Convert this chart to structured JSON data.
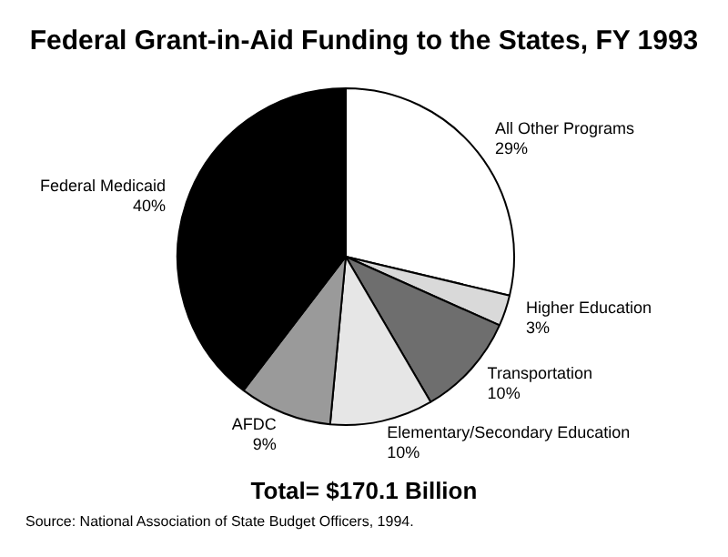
{
  "chart_data": {
    "type": "pie",
    "title": "Federal Grant-in-Aid Funding to the States, FY 1993",
    "categories": [
      "All Other Programs",
      "Higher Education",
      "Transportation",
      "Elementary/Secondary Education",
      "AFDC",
      "Federal Medicaid"
    ],
    "values": [
      29,
      3,
      10,
      10,
      9,
      40
    ],
    "colors": [
      "#ffffff",
      "#d9d9d9",
      "#6e6e6e",
      "#e6e6e6",
      "#9a9a9a",
      "#000000"
    ],
    "value_labels": [
      "29%",
      "3%",
      "10%",
      "10%",
      "9%",
      "40%"
    ],
    "legend": false,
    "annotations": [
      "Total=  $170.1 Billion",
      "Source:  National Association of State Budget Officers, 1994."
    ]
  }
}
